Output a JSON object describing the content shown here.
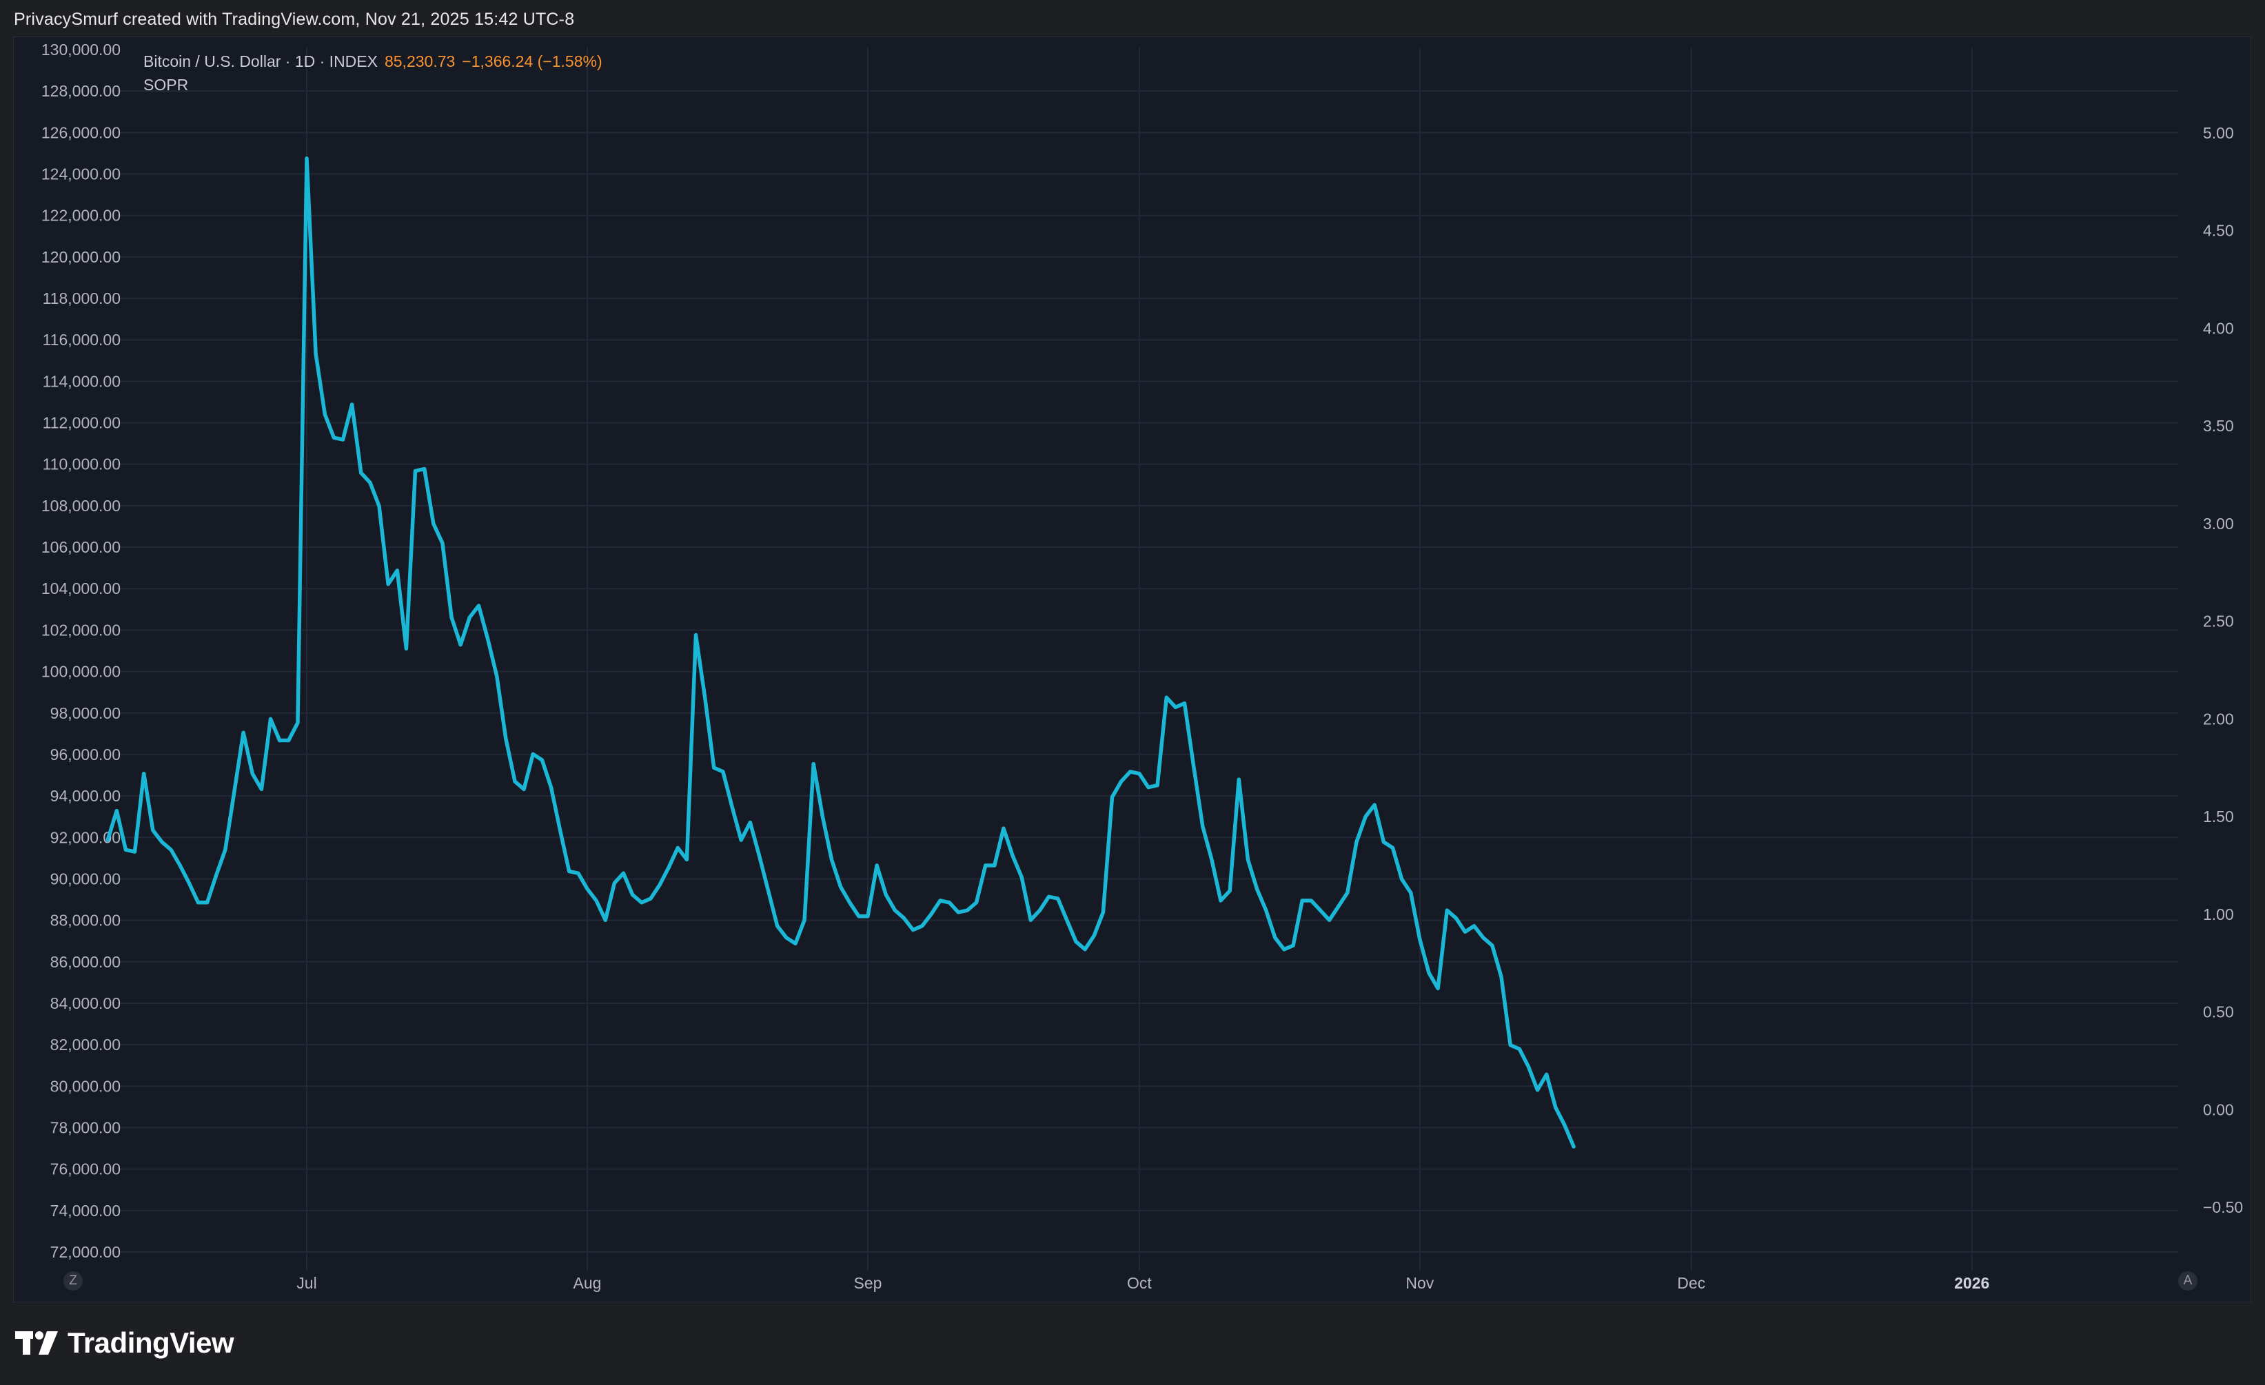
{
  "header": {
    "attribution": "PrivacySmurf created with TradingView.com, Nov 21, 2025 15:42 UTC-8"
  },
  "legend": {
    "symbol": "Bitcoin / U.S. Dollar · 1D · INDEX",
    "price": "85,230.73",
    "change": "−1,366.24 (−1.58%)",
    "indicator": "SOPR"
  },
  "buttons": {
    "left": "Z",
    "right": "A"
  },
  "footer": {
    "brand": "TradingView"
  },
  "colors": {
    "background": "#1e1f22",
    "panel": "#161a25",
    "grid": "#232836",
    "line": "#1ab8d6",
    "axis_text": "#b2b5be",
    "price_accent": "#f7932f"
  },
  "chart_data": {
    "type": "line",
    "title": "",
    "left_axis": {
      "ticks": [
        "130,000.00",
        "128,000.00",
        "126,000.00",
        "124,000.00",
        "122,000.00",
        "120,000.00",
        "118,000.00",
        "116,000.00",
        "114,000.00",
        "112,000.00",
        "110,000.00",
        "108,000.00",
        "106,000.00",
        "104,000.00",
        "102,000.00",
        "100,000.00",
        "98,000.00",
        "96,000.00",
        "94,000.00",
        "92,000.00",
        "90,000.00",
        "88,000.00",
        "86,000.00",
        "84,000.00",
        "82,000.00",
        "80,000.00",
        "78,000.00",
        "76,000.00",
        "74,000.00",
        "72,000.00"
      ],
      "range": [
        72000,
        130000
      ]
    },
    "right_axis": {
      "ticks": [
        "5.00",
        "4.50",
        "4.00",
        "3.50",
        "3.00",
        "2.50",
        "2.00",
        "1.50",
        "1.00",
        "0.50",
        "0.00",
        "−0.50"
      ],
      "range": [
        -0.5,
        5.0
      ]
    },
    "x_axis": {
      "labels": [
        "Jul",
        "Aug",
        "Sep",
        "Oct",
        "Nov",
        "Dec",
        "2026"
      ],
      "bold_labels": [
        "2026"
      ],
      "dates": [
        "2025-07-01",
        "2025-08-01",
        "2025-09-01",
        "2025-10-01",
        "2025-11-01",
        "2025-12-01",
        "2026-01-01"
      ]
    },
    "grid": true,
    "series": [
      {
        "color": "#1ab8d6",
        "x_start": "2025-06-09",
        "step_days": 1,
        "values": [
          1.38,
          1.53,
          1.33,
          1.32,
          1.72,
          1.43,
          1.37,
          1.33,
          1.25,
          1.16,
          1.06,
          1.06,
          1.2,
          1.33,
          1.63,
          1.93,
          1.72,
          1.64,
          2.0,
          1.89,
          1.89,
          1.98,
          4.87,
          3.87,
          3.56,
          3.44,
          3.43,
          3.61,
          3.26,
          3.21,
          3.09,
          2.69,
          2.76,
          2.36,
          3.27,
          3.28,
          3.0,
          2.9,
          2.52,
          2.38,
          2.52,
          2.58,
          2.41,
          2.22,
          1.9,
          1.68,
          1.64,
          1.82,
          1.79,
          1.65,
          1.43,
          1.22,
          1.21,
          1.13,
          1.07,
          0.97,
          1.16,
          1.21,
          1.1,
          1.06,
          1.08,
          1.15,
          1.24,
          1.34,
          1.28,
          2.43,
          2.11,
          1.75,
          1.73,
          1.55,
          1.38,
          1.47,
          1.3,
          1.12,
          0.94,
          0.88,
          0.85,
          0.97,
          1.77,
          1.5,
          1.28,
          1.14,
          1.06,
          0.99,
          0.99,
          1.25,
          1.1,
          1.02,
          0.98,
          0.92,
          0.94,
          1.0,
          1.07,
          1.06,
          1.01,
          1.02,
          1.06,
          1.25,
          1.25,
          1.44,
          1.3,
          1.19,
          0.97,
          1.02,
          1.09,
          1.08,
          0.97,
          0.86,
          0.82,
          0.89,
          1.01,
          1.6,
          1.68,
          1.73,
          1.72,
          1.65,
          1.66,
          2.11,
          2.06,
          2.08,
          1.76,
          1.45,
          1.28,
          1.07,
          1.12,
          1.69,
          1.28,
          1.13,
          1.02,
          0.88,
          0.82,
          0.84,
          1.07,
          1.07,
          1.02,
          0.97,
          1.04,
          1.11,
          1.37,
          1.5,
          1.56,
          1.37,
          1.34,
          1.18,
          1.11,
          0.87,
          0.7,
          0.62,
          1.02,
          0.98,
          0.91,
          0.94,
          0.88,
          0.84,
          0.68,
          0.33,
          0.31,
          0.22,
          0.1,
          0.18,
          0.01,
          -0.08,
          -0.19
        ]
      }
    ]
  }
}
